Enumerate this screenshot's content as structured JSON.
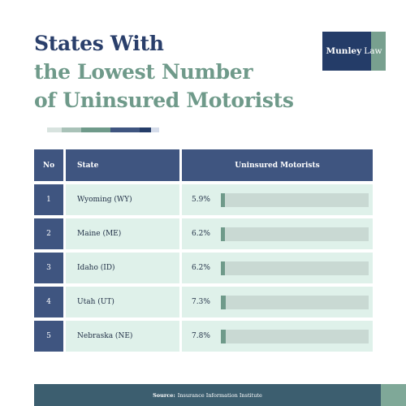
{
  "title": {
    "line1": "States With",
    "line2": "the Lowest Number",
    "line3": "of Uninsured Motorists"
  },
  "logo": {
    "brand": "Munley",
    "suffix": "Law"
  },
  "colors": {
    "navy": "#2a3f6b",
    "sage": "#6f9a8a",
    "header_bg": "#3f5580",
    "row_bg": "#dff1ea",
    "bar_track": "#c9d9d3",
    "bar_fill": "#6f9a8a"
  },
  "deco_bar_colors": [
    "#d8e3df",
    "#a9c2b8",
    "#6f9a8a",
    "#3f5580",
    "#243c68",
    "#d5dcea"
  ],
  "chart_data": {
    "type": "table",
    "columns": [
      "No",
      "State",
      "Uninsured Motorists"
    ],
    "rows": [
      {
        "no": "1",
        "state": "Wyoming (WY)",
        "value_label": "5.9%",
        "value": 5.9
      },
      {
        "no": "2",
        "state": "Maine (ME)",
        "value_label": "6.2%",
        "value": 6.2
      },
      {
        "no": "3",
        "state": "Idaho (ID)",
        "value_label": "6.2%",
        "value": 6.2
      },
      {
        "no": "4",
        "state": "Utah (UT)",
        "value_label": "7.3%",
        "value": 7.3
      },
      {
        "no": "5",
        "state": "Nebraska (NE)",
        "value_label": "7.8%",
        "value": 7.8
      }
    ]
  },
  "source": {
    "label": "Source:",
    "text": "Insurance Information Institute"
  }
}
